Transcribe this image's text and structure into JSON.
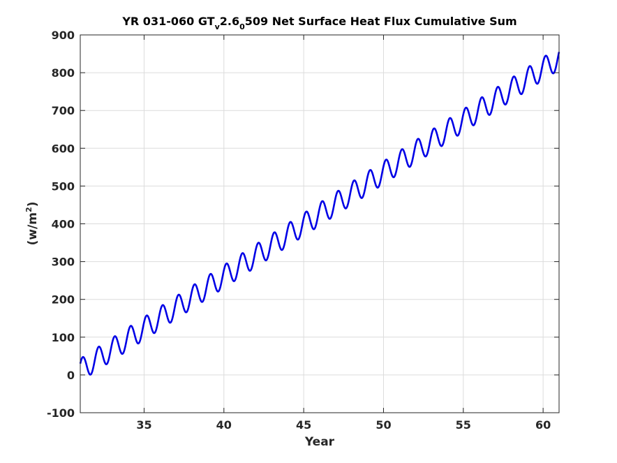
{
  "chart_data": {
    "type": "line",
    "title_parts": {
      "main": "YR 031-060 GT",
      "sub1": "v",
      "mid": "2.6",
      "sub2": "0",
      "rest": "509 Net Surface Heat Flux  Cumulative Sum"
    },
    "xlabel": "Year",
    "ylabel_base": "(w/m",
    "ylabel_sup": "2",
    "ylabel_close": ")",
    "xlim": [
      31,
      61
    ],
    "ylim": [
      -100,
      900
    ],
    "xticks": [
      35,
      40,
      45,
      50,
      55,
      60
    ],
    "yticks": [
      -100,
      0,
      100,
      200,
      300,
      400,
      500,
      600,
      700,
      800,
      900
    ],
    "grid": true,
    "series": [
      {
        "color": "#0000e6",
        "description_points": {
          "x": [
            31.0,
            31.2,
            31.5,
            32.2,
            32.5,
            33.2,
            33.5,
            60.2,
            60.5,
            61.0
          ],
          "y": [
            15,
            42,
            -20,
            72,
            10,
            102,
            38,
            851,
            787,
            832
          ]
        },
        "trend_start": 13,
        "trend_slope": 27.5,
        "seasonal_amplitude": 30,
        "period_years": 1.0
      }
    ]
  }
}
